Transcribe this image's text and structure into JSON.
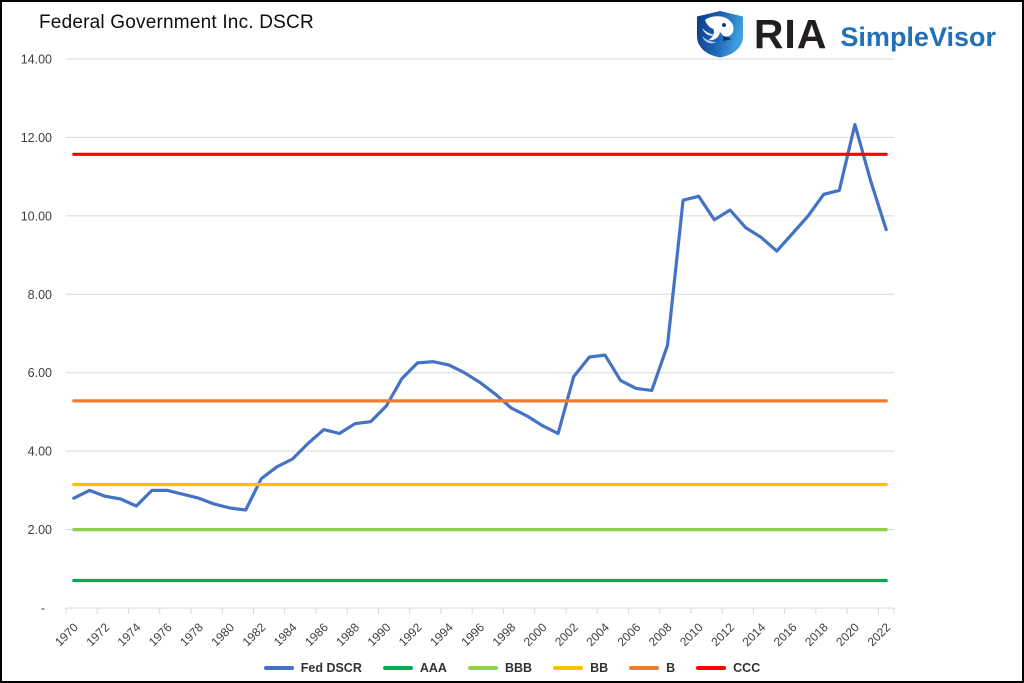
{
  "header": {
    "title": "Federal Government Inc. DSCR",
    "logo": {
      "ria": "RIA",
      "simplevisor": "SimpleVisor"
    }
  },
  "colors": {
    "fed_dscr_blue": "#4472C4",
    "aaa_green": "#00B050",
    "bbb_light_green": "#92D050",
    "bb_yellow": "#FFC000",
    "b_orange": "#ED7D31",
    "ccc_red": "#FF0000",
    "gridline": "#D9D9D9",
    "axis_text": "#3f3f3f",
    "simplevisor_blue": "#2170B8"
  },
  "chart_data": {
    "type": "line",
    "title": "Federal Government Inc. DSCR",
    "ylim": [
      0,
      14
    ],
    "grid": true,
    "legend_position": "bottom",
    "years": [
      1970,
      1971,
      1972,
      1973,
      1974,
      1975,
      1976,
      1977,
      1978,
      1979,
      1980,
      1981,
      1982,
      1983,
      1984,
      1985,
      1986,
      1987,
      1988,
      1989,
      1990,
      1991,
      1992,
      1993,
      1994,
      1995,
      1996,
      1997,
      1998,
      1999,
      2000,
      2001,
      2002,
      2003,
      2004,
      2005,
      2006,
      2007,
      2008,
      2009,
      2010,
      2011,
      2012,
      2013,
      2014,
      2015,
      2016,
      2017,
      2018,
      2019,
      2020,
      2021,
      2022
    ],
    "series": [
      {
        "name": "Fed DSCR",
        "color": "#4472C4",
        "values": [
          2.8,
          3.0,
          2.85,
          2.78,
          2.6,
          3.0,
          3.0,
          2.9,
          2.8,
          2.65,
          2.55,
          2.5,
          3.3,
          3.6,
          3.8,
          4.2,
          4.55,
          4.45,
          4.7,
          4.75,
          5.15,
          5.85,
          6.25,
          6.28,
          6.2,
          6.0,
          5.75,
          5.45,
          5.1,
          4.9,
          4.65,
          4.45,
          5.9,
          6.4,
          6.45,
          5.8,
          5.6,
          5.55,
          6.7,
          10.4,
          10.5,
          9.9,
          10.15,
          9.7,
          9.45,
          9.1,
          9.55,
          10.0,
          10.55,
          10.65,
          12.33,
          10.9,
          9.65
        ]
      }
    ],
    "thresholds": [
      {
        "name": "AAA",
        "value": 0.7,
        "color": "#00B050"
      },
      {
        "name": "BBB",
        "value": 2.0,
        "color": "#92D050"
      },
      {
        "name": "BB",
        "value": 3.15,
        "color": "#FFC000"
      },
      {
        "name": "B",
        "value": 5.28,
        "color": "#ED7D31"
      },
      {
        "name": "CCC",
        "value": 11.57,
        "color": "#FF0000"
      }
    ],
    "y_ticks": [
      {
        "label": "14.00",
        "value": 14
      },
      {
        "label": "12.00",
        "value": 12
      },
      {
        "label": "10.00",
        "value": 10
      },
      {
        "label": "8.00",
        "value": 8
      },
      {
        "label": "6.00",
        "value": 6
      },
      {
        "label": "4.00",
        "value": 4
      },
      {
        "label": "2.00",
        "value": 2
      },
      {
        "label": "-",
        "value": 0
      }
    ],
    "x_tick_labels": [
      "1970",
      "1972",
      "1974",
      "1976",
      "1978",
      "1980",
      "1982",
      "1984",
      "1986",
      "1988",
      "1990",
      "1992",
      "1994",
      "1996",
      "1998",
      "2000",
      "2002",
      "2004",
      "2006",
      "2008",
      "2010",
      "2012",
      "2014",
      "2016",
      "2018",
      "2020",
      "2022"
    ],
    "legend_labels": [
      "Fed DSCR",
      "AAA",
      "BBB",
      "BB",
      "B",
      "CCC"
    ]
  }
}
